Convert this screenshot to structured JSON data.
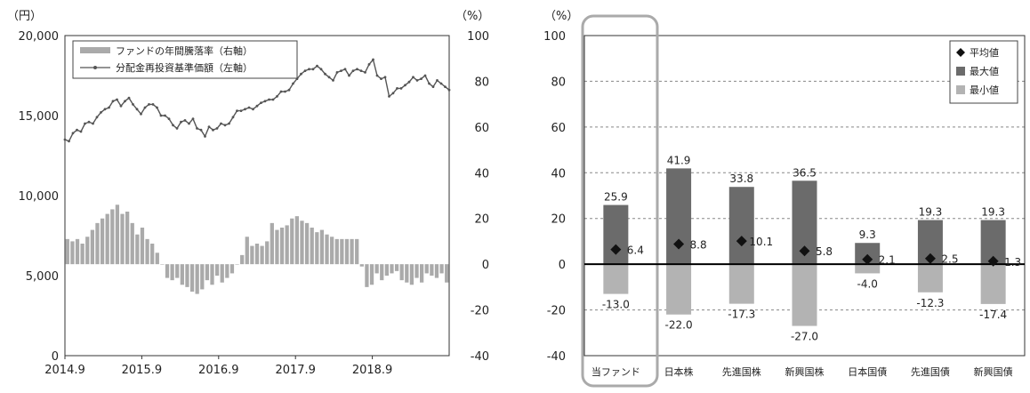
{
  "chart_data": [
    {
      "type": "combo",
      "left_unit": "（円）",
      "right_unit": "（%）",
      "left_ticks": [
        "0",
        "5,000",
        "10,000",
        "15,000",
        "20,000"
      ],
      "left_ylim": [
        0,
        20000
      ],
      "right_ticks": [
        "-40",
        "-20",
        "0",
        "20",
        "40",
        "60",
        "80",
        "100"
      ],
      "right_ylim": [
        -40,
        100
      ],
      "x_ticks": [
        "2014.9",
        "2015.9",
        "2016.9",
        "2017.9",
        "2018.9"
      ],
      "legend": {
        "bar": "ファンドの年間騰落率（右軸）",
        "line": "分配金再投資基準価額（左軸）"
      },
      "grid": false,
      "legend_position": "top-left",
      "series": [
        {
          "name": "分配金再投資基準価額（左軸）",
          "axis": "left",
          "kind": "line",
          "values": [
            13500,
            13400,
            13900,
            14100,
            14000,
            14500,
            14600,
            14500,
            14900,
            15200,
            15400,
            15500,
            15900,
            16000,
            15600,
            15900,
            16100,
            15700,
            15400,
            15100,
            15500,
            15700,
            15700,
            15500,
            15000,
            15000,
            14800,
            14400,
            14200,
            14600,
            14700,
            14500,
            14800,
            14200,
            14100,
            13700,
            14300,
            14100,
            14200,
            14500,
            14400,
            14500,
            14900,
            15300,
            15300,
            15400,
            15500,
            15400,
            15600,
            15800,
            15900,
            16000,
            16000,
            16200,
            16500,
            16500,
            16600,
            17000,
            17300,
            17600,
            17800,
            17900,
            17900,
            18100,
            17900,
            17600,
            17400,
            17200,
            17700,
            17800,
            17900,
            17500,
            17800,
            17900,
            17800,
            17700,
            18200,
            18500,
            17500,
            17300,
            17400,
            16200,
            16400,
            16700,
            16700,
            16900,
            17100,
            17400,
            17200,
            17300,
            17500,
            17000,
            16800,
            17200,
            17000,
            16800,
            16600
          ]
        },
        {
          "name": "ファンドの年間騰落率（右軸）",
          "axis": "right",
          "kind": "bar",
          "values": [
            11,
            10,
            11,
            9,
            12,
            15,
            18,
            20,
            22,
            24,
            26,
            22,
            23,
            18,
            13,
            16,
            11,
            9,
            5,
            0,
            -6,
            -7,
            -6,
            -9,
            -10,
            -12,
            -13,
            -11,
            -7,
            -9,
            -5,
            -8,
            -6,
            -4,
            0,
            4,
            12,
            8,
            9,
            8,
            10,
            18,
            15,
            16,
            17,
            20,
            21,
            19,
            18,
            16,
            14,
            15,
            13,
            12,
            11,
            11,
            11,
            11,
            11,
            -1,
            -10,
            -9,
            -4,
            -7,
            -5,
            -4,
            -3,
            -7,
            -8,
            -9,
            -6,
            -8,
            -4,
            -5,
            -6,
            -4,
            -8
          ]
        }
      ]
    },
    {
      "type": "bar",
      "y_unit": "（%）",
      "y_ticks": [
        "-40",
        "-20",
        "0",
        "20",
        "40",
        "60",
        "80",
        "100"
      ],
      "ylim": [
        -40,
        100
      ],
      "grid": true,
      "legend_position": "top-right",
      "legend": [
        "平均値",
        "最大値",
        "最小値"
      ],
      "categories": [
        "当ファンド",
        "日本株",
        "先進国株",
        "新興国株",
        "日本国債",
        "先進国債",
        "新興国債"
      ],
      "series": [
        {
          "name": "最大値",
          "values": [
            25.9,
            41.9,
            33.8,
            36.5,
            9.3,
            19.3,
            19.3
          ],
          "labels": [
            "25.9",
            "41.9",
            "33.8",
            "36.5",
            "9.3",
            "19.3",
            "19.3"
          ]
        },
        {
          "name": "最小値",
          "values": [
            -13.0,
            -22.0,
            -17.3,
            -27.0,
            -4.0,
            -12.3,
            -17.4
          ],
          "labels": [
            "-13.0",
            "-22.0",
            "-17.3",
            "-27.0",
            "-4.0",
            "-12.3",
            "-17.4"
          ]
        },
        {
          "name": "平均値",
          "values": [
            6.4,
            8.8,
            10.1,
            5.8,
            2.1,
            2.5,
            1.3
          ],
          "labels": [
            "6.4",
            "8.8",
            "10.1",
            "5.8",
            "2.1",
            "2.5",
            "1.3"
          ]
        }
      ],
      "highlight_category": "当ファンド",
      "colors": {
        "max": "#6b6b6b",
        "min": "#b3b3b3",
        "avg": "#111111",
        "highlight_frame": "#aaaaaa"
      }
    }
  ]
}
